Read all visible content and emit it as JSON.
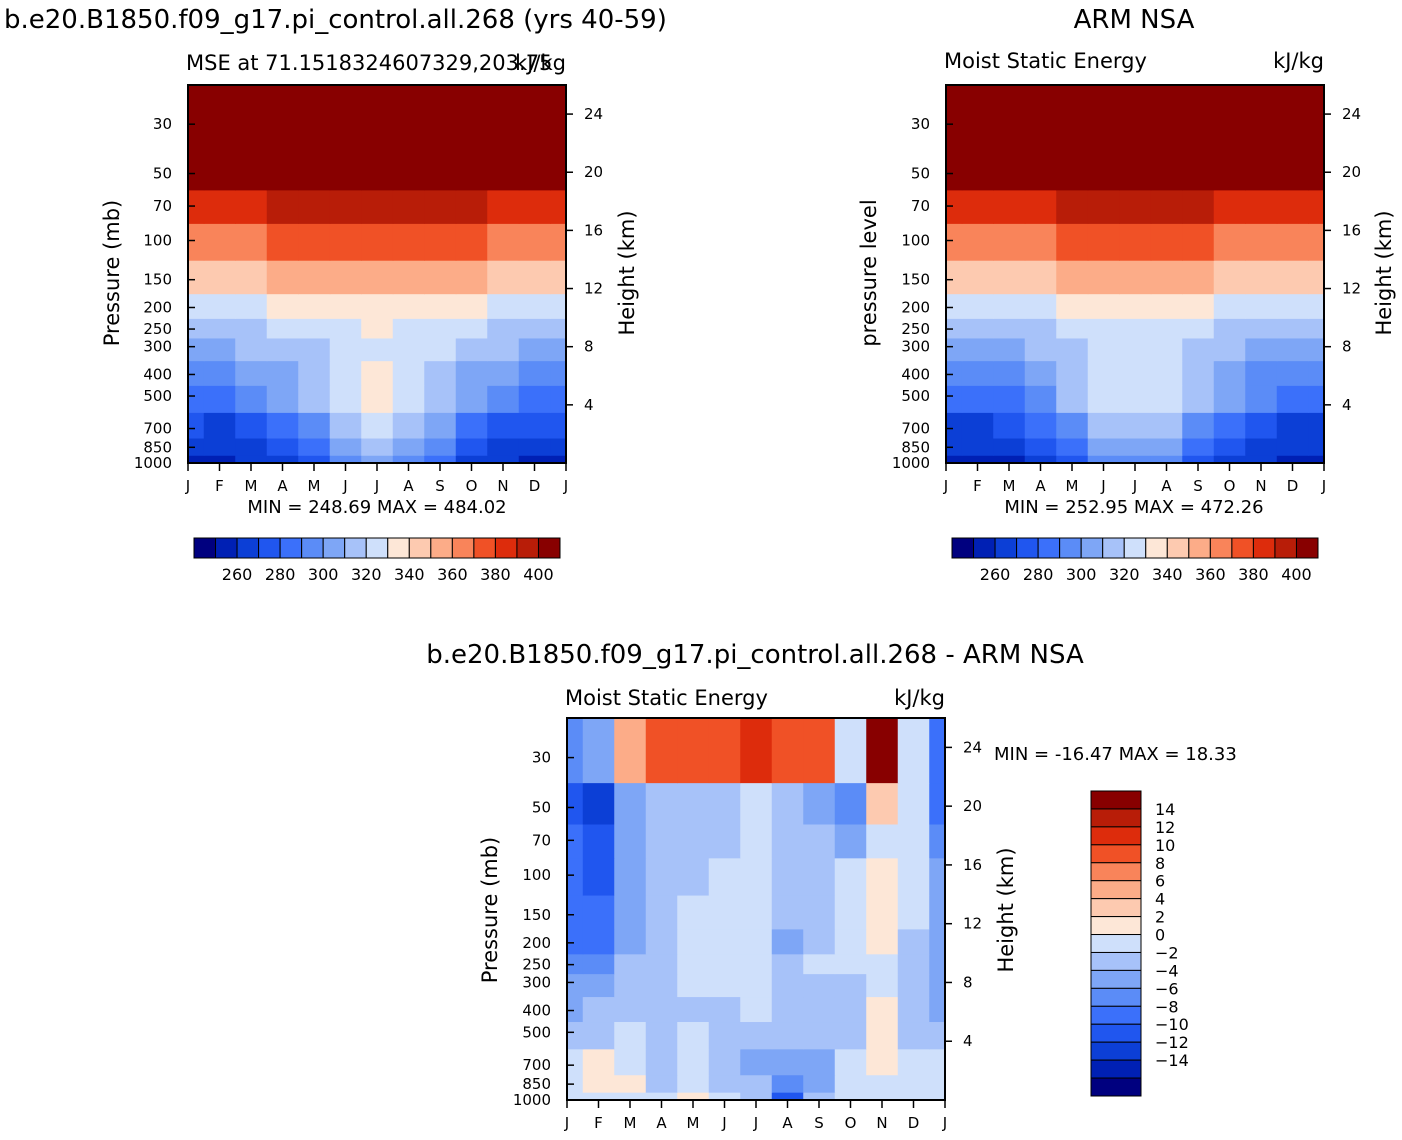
{
  "panels": {
    "model": {
      "header": "b.e20.B1850.f09_g17.pi_control.all.268 (yrs 40-59)",
      "subtitle_left": "MSE at 71.1518324607329,203.75",
      "subtitle_right": "kJ/kg",
      "y_label_left": "Pressure (mb)",
      "y_label_right": "Height (km)",
      "stats": "MIN = 248.69 MAX = 484.02"
    },
    "obs": {
      "header": "ARM NSA",
      "subtitle_left": "Moist Static Energy",
      "subtitle_right": "kJ/kg",
      "y_label_left": "pressure level",
      "y_label_right": "Height (km)",
      "stats": "MIN = 252.95 MAX = 472.26"
    },
    "diff": {
      "header": "b.e20.B1850.f09_g17.pi_control.all.268 - ARM NSA",
      "subtitle_left": "Moist Static Energy",
      "subtitle_right": "kJ/kg",
      "y_label_left": "Pressure (mb)",
      "y_label_right": "Height (km)",
      "stats": "MIN = -16.47 MAX =  18.33"
    }
  },
  "chart_data": [
    {
      "id": "model",
      "type": "heatmap",
      "title": "MSE at 71.1518324607329,203.75",
      "units": "kJ/kg",
      "x_tick_labels": [
        "J",
        "F",
        "M",
        "A",
        "M",
        "J",
        "J",
        "A",
        "S",
        "O",
        "N",
        "D",
        "J"
      ],
      "y_tick_labels_pressure": [
        "30",
        "50",
        "70",
        "100",
        "150",
        "200",
        "250",
        "300",
        "400",
        "500",
        "700",
        "850",
        "1000"
      ],
      "y_ticks_pressure": [
        30,
        50,
        70,
        100,
        150,
        200,
        250,
        300,
        400,
        500,
        700,
        850,
        1000
      ],
      "y_tick_labels_height": [
        "24",
        "20",
        "16",
        "12",
        "8",
        "4"
      ],
      "y_ticks_height": [
        24,
        20,
        16,
        12,
        8,
        4
      ],
      "levels": [
        250,
        260,
        270,
        280,
        290,
        300,
        310,
        320,
        330,
        340,
        350,
        360,
        370,
        380,
        390,
        400
      ],
      "colorbar_labels": [
        "260",
        "280",
        "300",
        "320",
        "340",
        "360",
        "380",
        "400"
      ],
      "min": 248.69,
      "max": 484.02,
      "plevels": [
        1000,
        850,
        700,
        500,
        400,
        300,
        250,
        200,
        150,
        100,
        70,
        50,
        30
      ],
      "months": [
        "J",
        "F",
        "M",
        "A",
        "M",
        "J",
        "J",
        "A",
        "S",
        "O",
        "N",
        "D",
        "J"
      ],
      "values": [
        [
          258,
          257,
          260,
          268,
          278,
          296,
          300,
          295,
          282,
          268,
          262,
          258,
          258
        ],
        [
          263,
          262,
          266,
          274,
          286,
          304,
          310,
          304,
          290,
          276,
          268,
          264,
          263
        ],
        [
          270,
          269,
          272,
          282,
          296,
          313,
          320,
          313,
          300,
          287,
          276,
          271,
          270
        ],
        [
          286,
          285,
          290,
          300,
          312,
          327,
          331,
          326,
          316,
          303,
          292,
          287,
          286
        ],
        [
          296,
          296,
          300,
          306,
          316,
          328,
          331,
          326,
          318,
          308,
          300,
          296,
          296
        ],
        [
          308,
          309,
          311,
          314,
          318,
          326,
          329,
          325,
          320,
          315,
          311,
          309,
          308
        ],
        [
          316,
          317,
          318,
          320,
          323,
          327,
          330,
          327,
          324,
          320,
          318,
          317,
          316
        ],
        [
          326,
          327,
          328,
          330,
          332,
          335,
          337,
          335,
          332,
          330,
          328,
          327,
          326
        ],
        [
          346,
          347,
          348,
          350,
          352,
          355,
          357,
          355,
          352,
          350,
          348,
          347,
          346
        ],
        [
          367,
          368,
          369,
          371,
          373,
          376,
          378,
          376,
          373,
          371,
          369,
          368,
          367
        ],
        [
          386,
          387,
          389,
          391,
          393,
          396,
          398,
          396,
          393,
          391,
          389,
          387,
          386
        ],
        [
          404,
          406,
          409,
          412,
          415,
          418,
          420,
          418,
          415,
          412,
          409,
          406,
          404
        ],
        [
          452,
          454,
          456,
          460,
          464,
          468,
          470,
          468,
          464,
          460,
          456,
          454,
          452
        ]
      ]
    },
    {
      "id": "obs",
      "type": "heatmap",
      "title": "Moist Static Energy",
      "units": "kJ/kg",
      "x_tick_labels": [
        "J",
        "F",
        "M",
        "A",
        "M",
        "J",
        "J",
        "A",
        "S",
        "O",
        "N",
        "D",
        "J"
      ],
      "y_tick_labels_pressure": [
        "30",
        "50",
        "70",
        "100",
        "150",
        "200",
        "250",
        "300",
        "400",
        "500",
        "700",
        "850",
        "1000"
      ],
      "y_ticks_pressure": [
        30,
        50,
        70,
        100,
        150,
        200,
        250,
        300,
        400,
        500,
        700,
        850,
        1000
      ],
      "y_tick_labels_height": [
        "24",
        "20",
        "16",
        "12",
        "8",
        "4"
      ],
      "y_ticks_height": [
        24,
        20,
        16,
        12,
        8,
        4
      ],
      "levels": [
        250,
        260,
        270,
        280,
        290,
        300,
        310,
        320,
        330,
        340,
        350,
        360,
        370,
        380,
        390,
        400
      ],
      "colorbar_labels": [
        "260",
        "280",
        "300",
        "320",
        "340",
        "360",
        "380",
        "400"
      ],
      "min": 252.95,
      "max": 472.26,
      "plevels": [
        1000,
        850,
        700,
        500,
        400,
        300,
        250,
        200,
        150,
        100,
        70,
        50,
        30
      ],
      "months": [
        "J",
        "F",
        "M",
        "A",
        "M",
        "J",
        "J",
        "A",
        "S",
        "O",
        "N",
        "D",
        "J"
      ],
      "values": [
        [
          257,
          256,
          258,
          266,
          276,
          292,
          298,
          292,
          278,
          265,
          260,
          257,
          257
        ],
        [
          262,
          261,
          264,
          272,
          284,
          302,
          308,
          302,
          288,
          274,
          266,
          262,
          262
        ],
        [
          268,
          267,
          270,
          280,
          294,
          311,
          318,
          311,
          298,
          285,
          274,
          269,
          268
        ],
        [
          284,
          283,
          288,
          298,
          310,
          325,
          329,
          324,
          314,
          301,
          290,
          285,
          284
        ],
        [
          294,
          294,
          298,
          304,
          314,
          326,
          329,
          324,
          316,
          306,
          298,
          294,
          294
        ],
        [
          306,
          307,
          309,
          312,
          316,
          324,
          327,
          323,
          318,
          313,
          309,
          307,
          306
        ],
        [
          314,
          315,
          316,
          318,
          321,
          325,
          328,
          325,
          322,
          318,
          316,
          315,
          314
        ],
        [
          324,
          325,
          326,
          328,
          330,
          333,
          335,
          333,
          330,
          328,
          326,
          325,
          324
        ],
        [
          344,
          345,
          346,
          348,
          350,
          353,
          355,
          353,
          350,
          348,
          346,
          345,
          344
        ],
        [
          365,
          366,
          367,
          369,
          371,
          374,
          376,
          374,
          371,
          369,
          367,
          366,
          365
        ],
        [
          384,
          385,
          387,
          389,
          391,
          394,
          396,
          394,
          391,
          389,
          387,
          385,
          384
        ],
        [
          402,
          404,
          407,
          410,
          413,
          416,
          418,
          416,
          413,
          410,
          407,
          404,
          402
        ],
        [
          448,
          450,
          452,
          456,
          460,
          464,
          466,
          464,
          460,
          456,
          452,
          450,
          448
        ]
      ]
    },
    {
      "id": "diff",
      "type": "heatmap",
      "title": "Moist Static Energy",
      "units": "kJ/kg",
      "x_tick_labels": [
        "J",
        "F",
        "M",
        "A",
        "M",
        "J",
        "J",
        "A",
        "S",
        "O",
        "N",
        "D",
        "J"
      ],
      "y_tick_labels_pressure": [
        "30",
        "50",
        "70",
        "100",
        "150",
        "200",
        "250",
        "300",
        "400",
        "500",
        "700",
        "850",
        "1000"
      ],
      "y_ticks_pressure": [
        30,
        50,
        70,
        100,
        150,
        200,
        250,
        300,
        400,
        500,
        700,
        850,
        1000
      ],
      "y_tick_labels_height": [
        "24",
        "20",
        "16",
        "12",
        "8",
        "4"
      ],
      "y_ticks_height": [
        24,
        20,
        16,
        12,
        8,
        4
      ],
      "levels": [
        -16,
        -14,
        -12,
        -10,
        -8,
        -6,
        -4,
        -2,
        0,
        2,
        4,
        6,
        8,
        10,
        12,
        14
      ],
      "colorbar_labels": [
        "14",
        "12",
        "10",
        "8",
        "6",
        "4",
        "2",
        "0",
        "−2",
        "−4",
        "−6",
        "−8",
        "−10",
        "−12",
        "−14"
      ],
      "min": -16.47,
      "max": 18.33,
      "plevels": [
        1000,
        850,
        700,
        500,
        400,
        300,
        250,
        200,
        150,
        100,
        70,
        50,
        30
      ],
      "months": [
        "J",
        "F",
        "M",
        "A",
        "M",
        "J",
        "J",
        "A",
        "S",
        "O",
        "N",
        "D",
        "J"
      ],
      "values": [
        [
          -2,
          -1,
          -2,
          -2,
          0.5,
          -2,
          -3,
          -11,
          -3,
          -1,
          -1,
          -2,
          -2
        ],
        [
          -2,
          1,
          1,
          -3,
          -1,
          -3,
          -4,
          -8,
          -5,
          -1,
          -1,
          -2,
          -2
        ],
        [
          -2,
          1,
          -1,
          -3,
          -2,
          -3,
          -5,
          -5,
          -5,
          -2,
          1,
          -2,
          -2
        ],
        [
          -3,
          -3,
          -2,
          -3,
          -2,
          -3,
          -4,
          -4,
          -4,
          -3,
          1,
          -3,
          -3
        ],
        [
          -5,
          -4,
          -3,
          -3,
          -3,
          -3,
          -2,
          -4,
          -4,
          -3,
          1,
          -4,
          -5
        ],
        [
          -6,
          -5,
          -4,
          -3,
          -2,
          -2,
          -2,
          -3,
          -3,
          -3,
          -2,
          -4,
          -6
        ],
        [
          -7,
          -7,
          -4,
          -3,
          -2,
          -2,
          -2,
          -3,
          -2,
          -2,
          -1,
          -3,
          -6
        ],
        [
          -9,
          -9,
          -5,
          -3,
          -2,
          -2,
          -2,
          -5,
          -3,
          -2,
          1,
          -3,
          -5
        ],
        [
          -10,
          -10,
          -5,
          -3,
          -1,
          -1,
          -2,
          -3,
          -3,
          -2,
          1,
          -2,
          -5
        ],
        [
          -10,
          -11,
          -6,
          -3,
          -3,
          -2,
          -2,
          -3,
          -3,
          -2,
          1,
          -2,
          -6
        ],
        [
          -10,
          -12,
          -6,
          -3,
          -3,
          -3,
          -2,
          -3,
          -4,
          -5,
          -1,
          -2,
          -8
        ],
        [
          -11,
          -14,
          -6,
          -3,
          -3,
          -4,
          -2,
          -3,
          -5,
          -7,
          2,
          -2,
          -9
        ],
        [
          -7,
          -5,
          5,
          9,
          9,
          8,
          10,
          8,
          9,
          -2,
          16,
          -2,
          -10
        ]
      ]
    }
  ]
}
